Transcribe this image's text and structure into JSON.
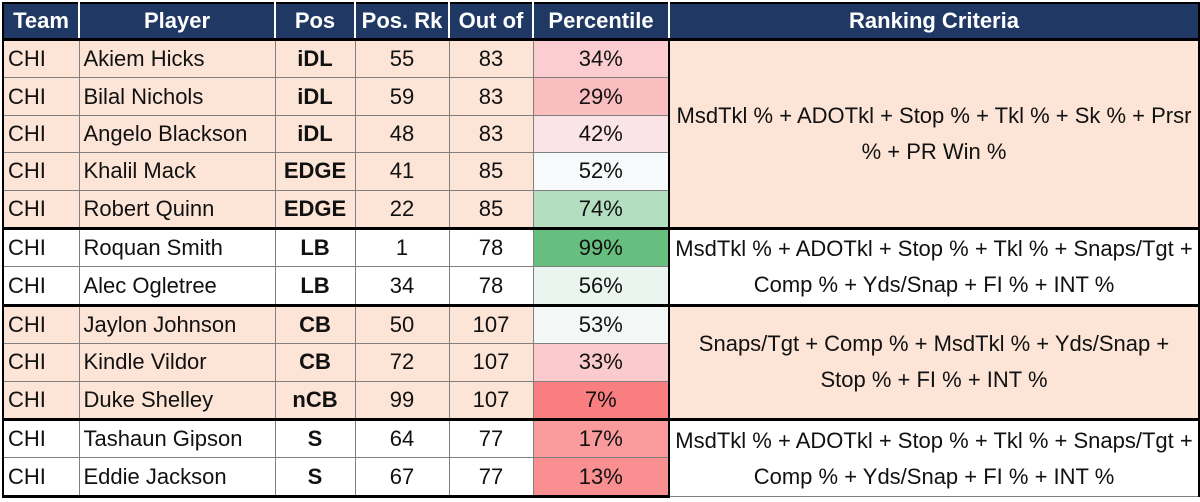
{
  "headers": [
    "Team",
    "Player",
    "Pos",
    "Pos. Rk",
    "Out of",
    "Percentile",
    "Ranking Criteria"
  ],
  "colors": {
    "header_bg": "#1f3864",
    "header_text": "#ffffff",
    "group_pink": "#fce4d6",
    "group_white": "#ffffff",
    "percentile_high": "#63be7b",
    "percentile_mid": "#fcfcff",
    "percentile_low": "#f8696b"
  },
  "groups": [
    {
      "shade": "pink",
      "criteria": "MsdTkl % + ADOTkl + Stop % + Tkl % + Sk % + Prsr % + PR Win %",
      "rows": [
        {
          "team": "CHI",
          "player": "Akiem Hicks",
          "pos": "iDL",
          "pos_rk": "55",
          "out_of": "83",
          "percentile": "34%"
        },
        {
          "team": "CHI",
          "player": "Bilal Nichols",
          "pos": "iDL",
          "pos_rk": "59",
          "out_of": "83",
          "percentile": "29%"
        },
        {
          "team": "CHI",
          "player": "Angelo Blackson",
          "pos": "iDL",
          "pos_rk": "48",
          "out_of": "83",
          "percentile": "42%"
        },
        {
          "team": "CHI",
          "player": "Khalil Mack",
          "pos": "EDGE",
          "pos_rk": "41",
          "out_of": "85",
          "percentile": "52%"
        },
        {
          "team": "CHI",
          "player": "Robert Quinn",
          "pos": "EDGE",
          "pos_rk": "22",
          "out_of": "85",
          "percentile": "74%"
        }
      ]
    },
    {
      "shade": "white",
      "criteria": "MsdTkl % + ADOTkl + Stop % + Tkl % + Snaps/Tgt + Comp % + Yds/Snap + FI % + INT %",
      "rows": [
        {
          "team": "CHI",
          "player": "Roquan Smith",
          "pos": "LB",
          "pos_rk": "1",
          "out_of": "78",
          "percentile": "99%"
        },
        {
          "team": "CHI",
          "player": "Alec Ogletree",
          "pos": "LB",
          "pos_rk": "34",
          "out_of": "78",
          "percentile": "56%"
        }
      ]
    },
    {
      "shade": "pink",
      "criteria": "Snaps/Tgt + Comp % + MsdTkl % + Yds/Snap + Stop % + FI % + INT %",
      "rows": [
        {
          "team": "CHI",
          "player": "Jaylon Johnson",
          "pos": "CB",
          "pos_rk": "50",
          "out_of": "107",
          "percentile": "53%"
        },
        {
          "team": "CHI",
          "player": "Kindle Vildor",
          "pos": "CB",
          "pos_rk": "72",
          "out_of": "107",
          "percentile": "33%"
        },
        {
          "team": "CHI",
          "player": "Duke Shelley",
          "pos": "nCB",
          "pos_rk": "99",
          "out_of": "107",
          "percentile": "7%"
        }
      ]
    },
    {
      "shade": "white",
      "criteria": "MsdTkl % + ADOTkl + Stop % + Tkl % + Snaps/Tgt + Comp % + Yds/Snap + FI % + INT %",
      "rows": [
        {
          "team": "CHI",
          "player": "Tashaun Gipson",
          "pos": "S",
          "pos_rk": "64",
          "out_of": "77",
          "percentile": "17%"
        },
        {
          "team": "CHI",
          "player": "Eddie Jackson",
          "pos": "S",
          "pos_rk": "67",
          "out_of": "77",
          "percentile": "13%"
        }
      ]
    }
  ]
}
